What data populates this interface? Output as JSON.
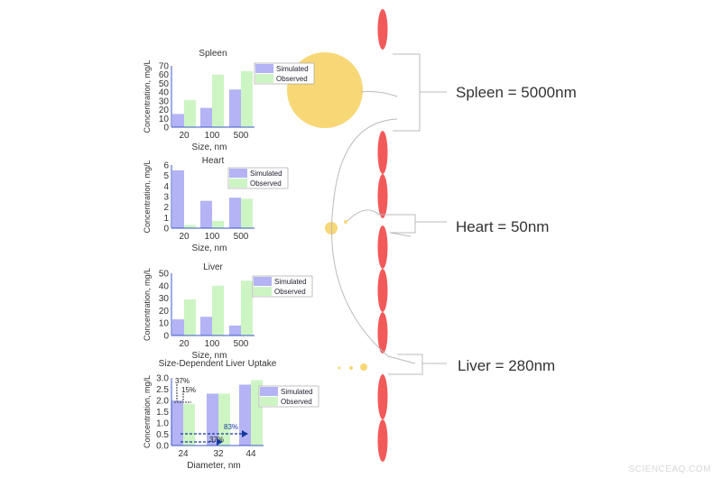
{
  "colors": {
    "simulated": "#b3b3f5",
    "observed": "#cdf5c4",
    "vessel": "#f25a5a",
    "particle": "#f8d776",
    "axis": "#3a58c8"
  },
  "chart_data": [
    {
      "type": "bar",
      "title": "Spleen",
      "xlabel": "Size, nm",
      "ylabel": "Concentration, mg/L",
      "categories": [
        "20",
        "100",
        "500"
      ],
      "ylim": [
        0,
        70
      ],
      "yticks": [
        0,
        10,
        20,
        30,
        40,
        50,
        60,
        70
      ],
      "series": [
        {
          "name": "Simulated",
          "values": [
            15,
            22,
            43
          ]
        },
        {
          "name": "Observed",
          "values": [
            31,
            60,
            64
          ]
        }
      ],
      "legend": "top-right"
    },
    {
      "type": "bar",
      "title": "Heart",
      "xlabel": "Size, nm",
      "ylabel": "Concentration, mg/L",
      "categories": [
        "20",
        "100",
        "500"
      ],
      "ylim": [
        0,
        6
      ],
      "yticks": [
        0,
        1,
        2,
        3,
        4,
        5,
        6
      ],
      "series": [
        {
          "name": "Simulated",
          "values": [
            5.5,
            2.6,
            2.9
          ]
        },
        {
          "name": "Observed",
          "values": [
            0.3,
            0.7,
            2.8
          ]
        }
      ],
      "legend": "top-right"
    },
    {
      "type": "bar",
      "title": "Liver",
      "xlabel": "Size, nm",
      "ylabel": "Concentration, mg/L",
      "categories": [
        "20",
        "100",
        "500"
      ],
      "ylim": [
        0,
        50
      ],
      "yticks": [
        0,
        10,
        20,
        30,
        40,
        50
      ],
      "series": [
        {
          "name": "Simulated",
          "values": [
            13,
            15,
            8
          ]
        },
        {
          "name": "Observed",
          "values": [
            29,
            40,
            44
          ]
        }
      ],
      "legend": "top-right"
    },
    {
      "type": "bar",
      "title": "Size-Dependent Liver Uptake",
      "xlabel": "Diameter, nm",
      "ylabel": "Concentration, mg/L",
      "categories": [
        "24",
        "32",
        "44"
      ],
      "ylim": [
        0,
        3
      ],
      "yticks": [
        "0.0",
        "0.5",
        "1.0",
        "1.5",
        "2.0",
        "2.5",
        "3.0"
      ],
      "series": [
        {
          "name": "Simulated",
          "values": [
            2.0,
            2.3,
            2.7
          ]
        },
        {
          "name": "Observed",
          "values": [
            1.85,
            2.3,
            2.9
          ]
        }
      ],
      "legend": "top-right",
      "annotations": [
        "37%",
        "15%",
        "83%",
        "37%"
      ]
    }
  ],
  "diagram": {
    "labels": [
      "Spleen = 5000nm",
      "Heart = 50nm",
      "Liver = 280nm"
    ]
  },
  "watermark": "SCIENCEAQ.COM"
}
